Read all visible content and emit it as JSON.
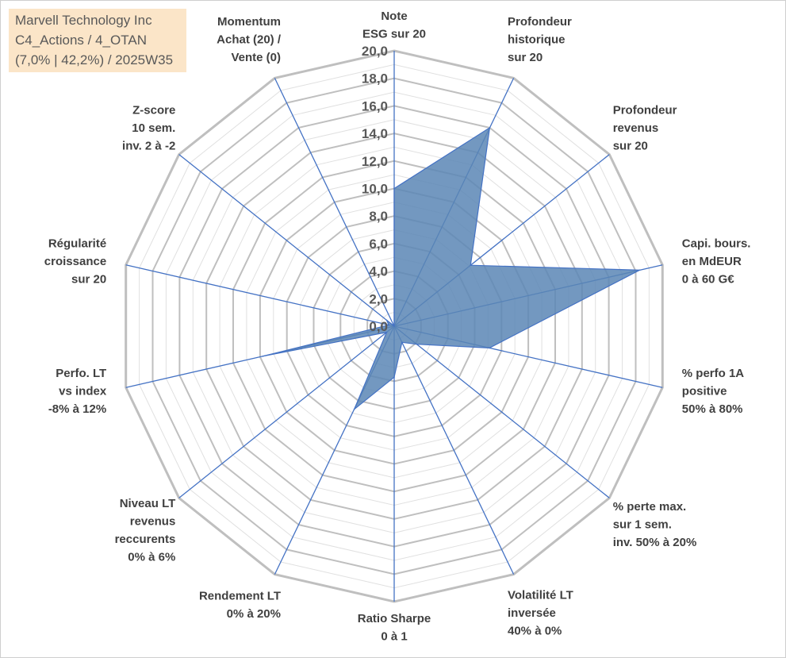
{
  "title_box": {
    "line1": "Marvell Technology Inc",
    "line2": "C4_Actions / 4_OTAN",
    "line3": "(7,0% | 42,2%) / 2025W35"
  },
  "colors": {
    "fill": "#5b86b5",
    "outline": "#4472c4",
    "spoke": "#4472c4",
    "ring": "#bfbfbf",
    "ring_minor": "#e0e0e0",
    "title_bg": "#fbe5c8"
  },
  "chart_data": {
    "type": "radar",
    "scale_min": 0,
    "scale_max": 20,
    "grid": true,
    "ticks": [
      "0,0",
      "2,0",
      "4,0",
      "6,0",
      "8,0",
      "10,0",
      "12,0",
      "14,0",
      "16,0",
      "18,0",
      "20,0"
    ],
    "axes": [
      [
        "Note",
        "ESG sur 20"
      ],
      [
        "Profondeur",
        "historique",
        "sur 20"
      ],
      [
        "Profondeur",
        "revenus",
        "sur 20"
      ],
      [
        "Capi. bours.",
        "en MdEUR",
        "0 à 60 G€"
      ],
      [
        "% perfo 1A",
        "positive",
        "50% à 80%"
      ],
      [
        "% perte max.",
        "sur 1 sem.",
        "inv. 50% à 20%"
      ],
      [
        "Volatilité LT",
        "inversée",
        "40% à 0%"
      ],
      [
        "Ratio Sharpe",
        "0 à 1"
      ],
      [
        "Rendement LT",
        "0% à 20%"
      ],
      [
        "Niveau LT",
        "revenus",
        "reccurents",
        "0% à 6%"
      ],
      [
        "Perfo. LT",
        "vs index",
        "-8% à 12%"
      ],
      [
        "Régularité",
        "croissance",
        "sur 20"
      ],
      [
        "Z-score",
        "10 sem.",
        "inv. 2 à -2"
      ],
      [
        "Momentum",
        "Achat (20) /",
        "Vente (0)"
      ]
    ],
    "values": [
      10,
      16,
      7.1,
      18.3,
      7.1,
      2.1,
      1.3,
      3.7,
      6.7,
      0.7,
      9.8,
      0.4,
      0.7,
      0
    ]
  }
}
